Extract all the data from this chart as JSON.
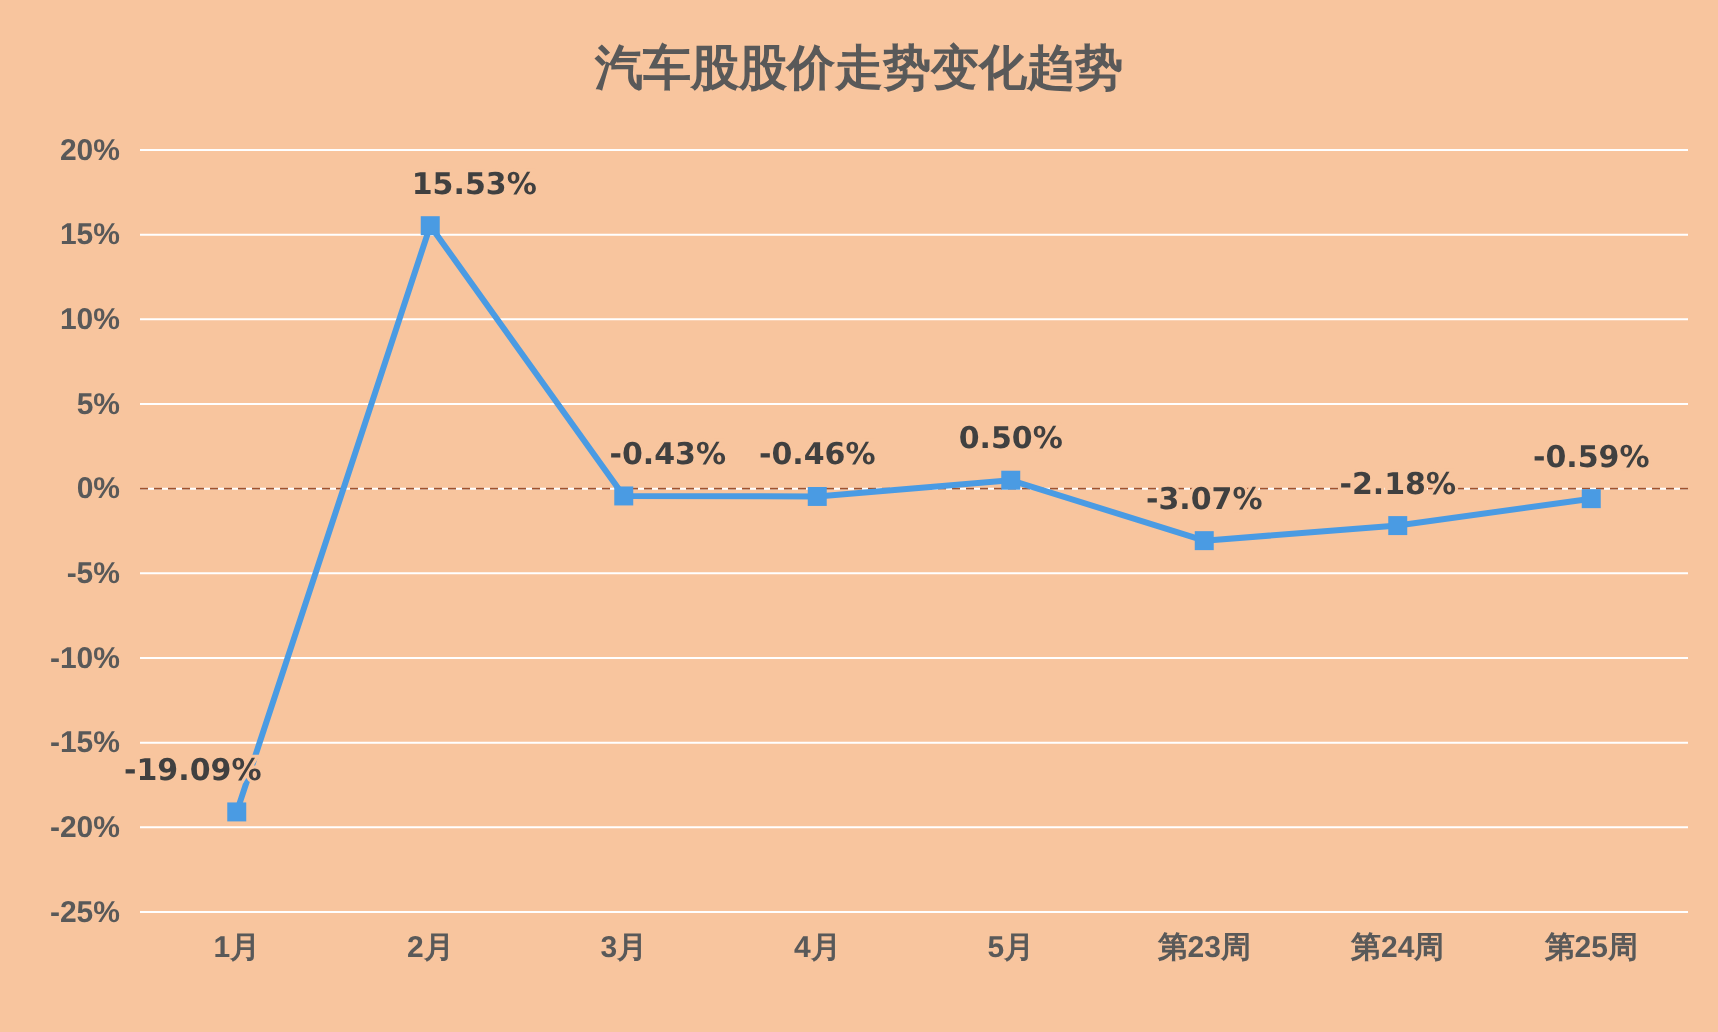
{
  "chart_data": {
    "type": "line",
    "title": "汽车股股价走势变化趋势",
    "categories": [
      "1月",
      "2月",
      "3月",
      "4月",
      "5月",
      "第23周",
      "第24周",
      "第25周"
    ],
    "series": [
      {
        "color": "#4a9be3",
        "values": [
          -19.09,
          15.53,
          -0.43,
          -0.46,
          0.5,
          -3.07,
          -2.18,
          -0.59
        ],
        "value_labels": [
          "-19.09%",
          "15.53%",
          "-0.43%",
          "-0.46%",
          "0.50%",
          "-3.07%",
          "-2.18%",
          "-0.59%"
        ]
      }
    ],
    "ylim": [
      -25,
      20
    ],
    "yticks": [
      {
        "value": -25,
        "label": "-25%"
      },
      {
        "value": -20,
        "label": "-20%"
      },
      {
        "value": -15,
        "label": "-15%"
      },
      {
        "value": -10,
        "label": "-10%"
      },
      {
        "value": -5,
        "label": "-5%"
      },
      {
        "value": 0,
        "label": "0%"
      },
      {
        "value": 5,
        "label": "5%"
      },
      {
        "value": 10,
        "label": "10%"
      },
      {
        "value": 15,
        "label": "15%"
      },
      {
        "value": 20,
        "label": "20%"
      }
    ],
    "ref_lines": [
      {
        "axis": "y",
        "value": 0,
        "color": "#a0522d",
        "line_style": "dashed"
      }
    ],
    "grid": "y",
    "marker": "square",
    "line_style": "solid"
  }
}
